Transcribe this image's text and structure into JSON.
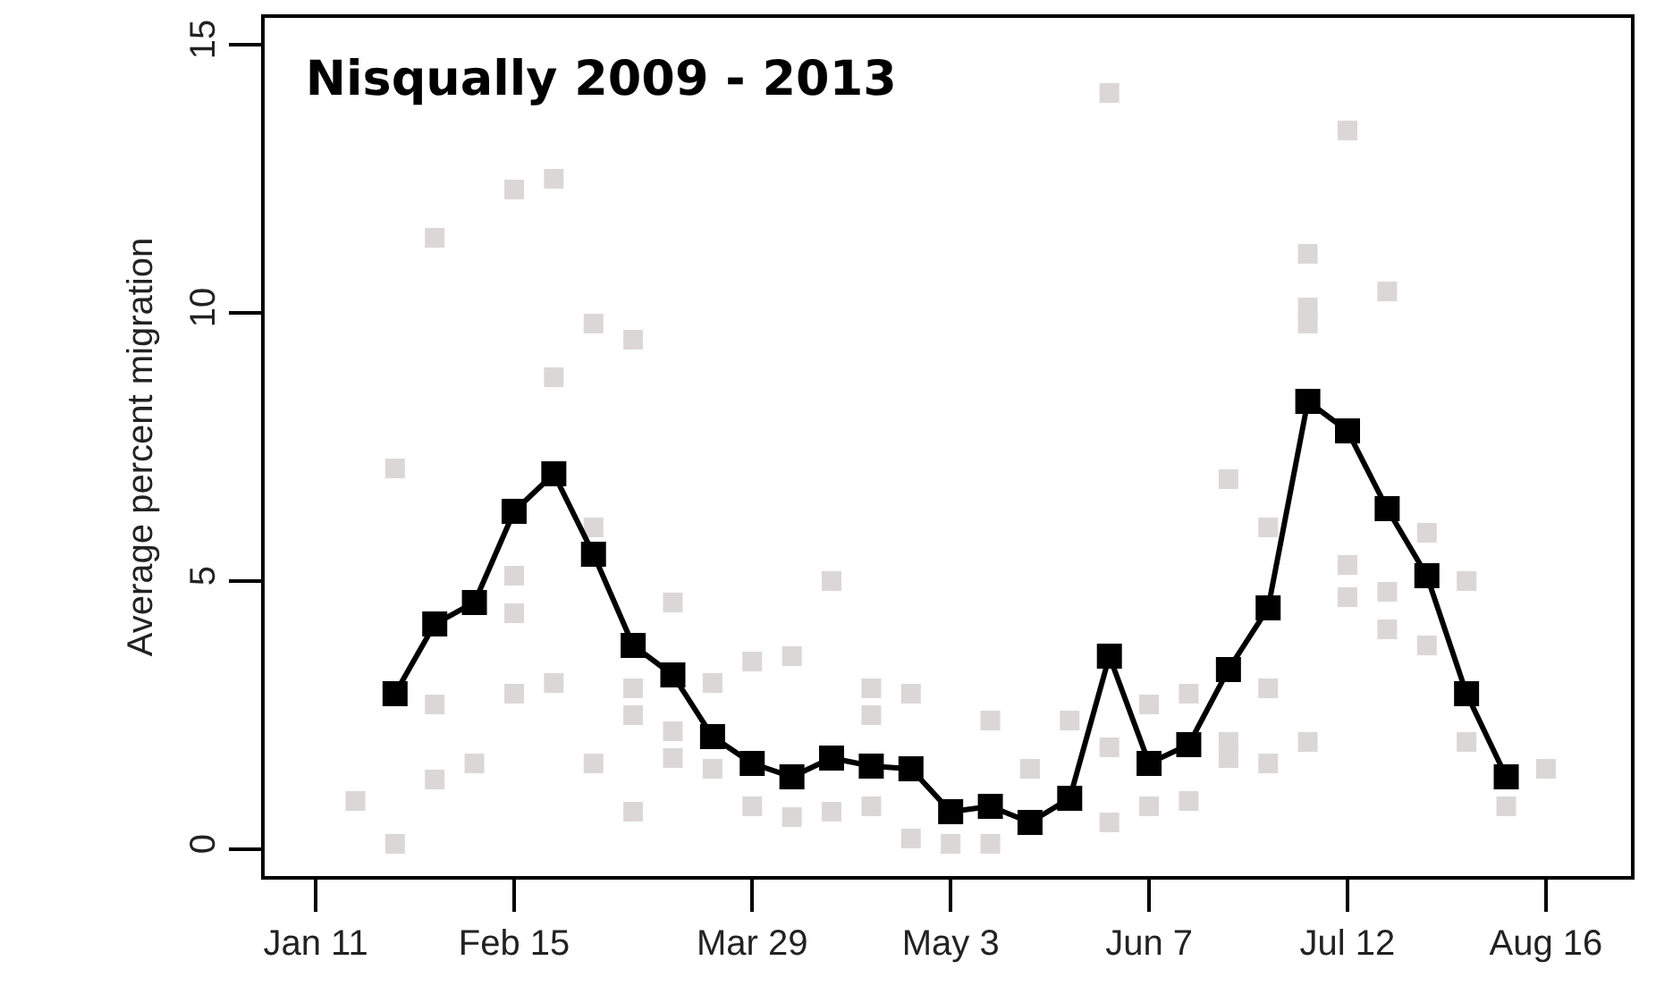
{
  "chart_data": {
    "type": "line",
    "title": "Nisqually 2009 - 2013",
    "ylabel": "Average percent migration",
    "xlim": [
      "--01-02",
      "--08-31"
    ],
    "ylim": [
      -0.5,
      15.5
    ],
    "xticks": [
      {
        "value": "--01-11",
        "label": "Jan 11"
      },
      {
        "value": "--02-15",
        "label": "Feb 15"
      },
      {
        "value": "--03-29",
        "label": "Mar 29"
      },
      {
        "value": "--05-03",
        "label": "May 3"
      },
      {
        "value": "--06-07",
        "label": "Jun 7"
      },
      {
        "value": "--07-12",
        "label": "Jul 12"
      },
      {
        "value": "--08-16",
        "label": "Aug 16"
      }
    ],
    "yticks": [
      0,
      5,
      10,
      15
    ],
    "grid": false,
    "marker": "square",
    "line_style": "solid",
    "series": [
      {
        "type": "scatter",
        "color": "#dcd7d7",
        "x": [
          "--01-18",
          "--01-25",
          "--01-25",
          "--02-01",
          "--02-01",
          "--02-01",
          "--02-08",
          "--02-15",
          "--02-15",
          "--02-15",
          "--02-15",
          "--02-22",
          "--02-22",
          "--02-22",
          "--03-01",
          "--03-01",
          "--03-01",
          "--03-08",
          "--03-08",
          "--03-08",
          "--03-08",
          "--03-15",
          "--03-15",
          "--03-15",
          "--03-22",
          "--03-22",
          "--03-29",
          "--03-29",
          "--04-05",
          "--04-05",
          "--04-12",
          "--04-12",
          "--04-19",
          "--04-19",
          "--04-19",
          "--04-26",
          "--04-26",
          "--05-03",
          "--05-10",
          "--05-10",
          "--05-17",
          "--05-24",
          "--05-31",
          "--05-31",
          "--05-31",
          "--06-07",
          "--06-07",
          "--06-14",
          "--06-14",
          "--06-21",
          "--06-21",
          "--06-21",
          "--06-28",
          "--06-28",
          "--06-28",
          "--07-05",
          "--07-05",
          "--07-05",
          "--07-05",
          "--07-12",
          "--07-12",
          "--07-12",
          "--07-19",
          "--07-19",
          "--07-19",
          "--07-26",
          "--07-26",
          "--08-02",
          "--08-02",
          "--08-09",
          "--08-16"
        ],
        "values": [
          0.9,
          7.1,
          0.1,
          11.4,
          2.7,
          1.3,
          1.6,
          12.3,
          5.1,
          4.4,
          2.9,
          12.5,
          8.8,
          3.1,
          9.8,
          6.0,
          1.6,
          9.5,
          3.0,
          2.5,
          0.7,
          4.6,
          2.2,
          1.7,
          3.1,
          1.5,
          3.5,
          0.8,
          3.6,
          0.6,
          5.0,
          0.7,
          3.0,
          2.5,
          0.8,
          2.9,
          0.2,
          0.1,
          2.4,
          0.1,
          1.5,
          2.4,
          14.1,
          1.9,
          0.5,
          2.7,
          0.8,
          2.9,
          0.9,
          6.9,
          2.0,
          1.7,
          6.0,
          3.0,
          1.6,
          11.1,
          10.1,
          9.8,
          2.0,
          13.4,
          5.3,
          4.7,
          10.4,
          4.8,
          4.1,
          5.9,
          3.8,
          5.0,
          2.0,
          0.8,
          1.5
        ]
      },
      {
        "type": "line",
        "color": "#000000",
        "x": [
          "--01-25",
          "--02-01",
          "--02-08",
          "--02-15",
          "--02-22",
          "--03-01",
          "--03-08",
          "--03-15",
          "--03-22",
          "--03-29",
          "--04-05",
          "--04-12",
          "--04-19",
          "--04-26",
          "--05-03",
          "--05-10",
          "--05-17",
          "--05-24",
          "--05-31",
          "--06-07",
          "--06-14",
          "--06-21",
          "--06-28",
          "--07-05",
          "--07-12",
          "--07-19",
          "--07-26",
          "--08-02",
          "--08-09"
        ],
        "values": [
          2.9,
          4.2,
          4.6,
          6.3,
          7.0,
          5.5,
          3.8,
          3.25,
          2.1,
          1.6,
          1.35,
          1.7,
          1.55,
          1.5,
          0.7,
          0.8,
          0.5,
          0.95,
          3.6,
          1.6,
          1.95,
          3.35,
          4.5,
          8.35,
          7.8,
          6.35,
          5.1,
          2.9,
          1.35
        ]
      }
    ]
  }
}
